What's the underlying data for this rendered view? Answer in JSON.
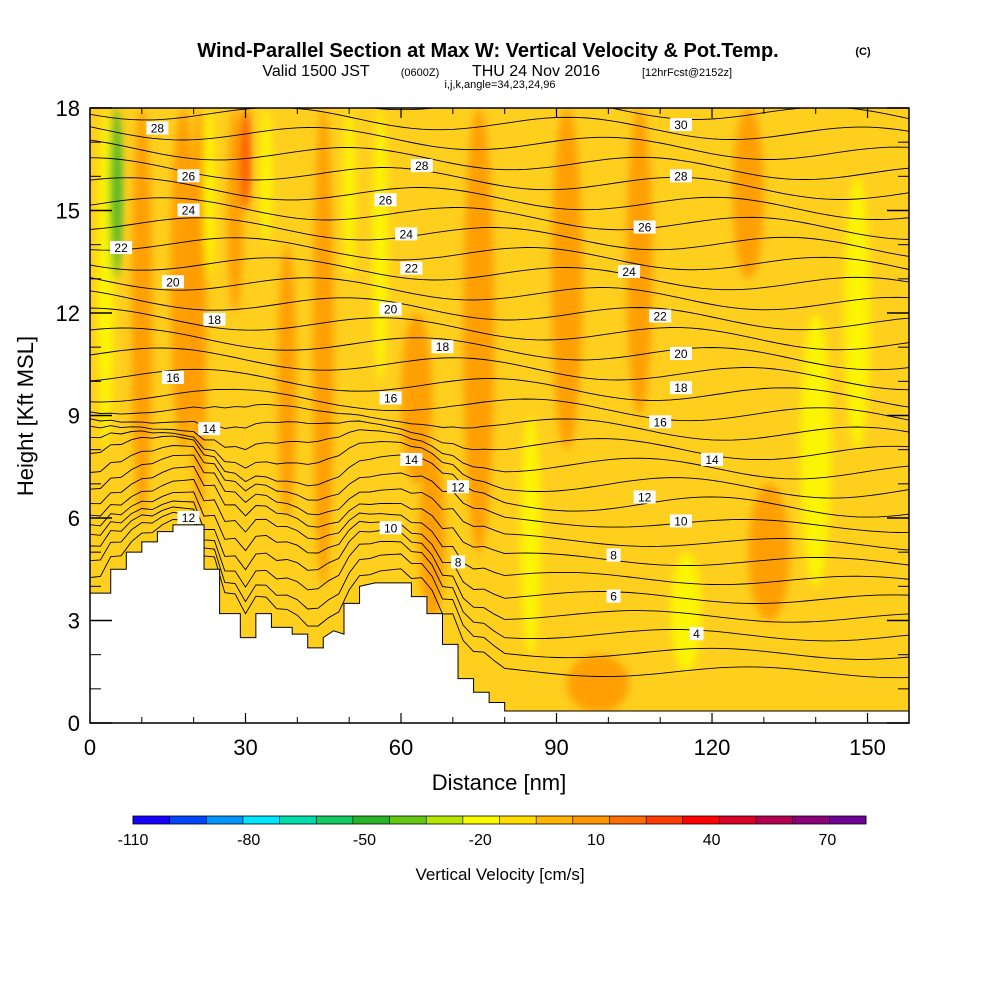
{
  "chart_data": {
    "type": "heatmap",
    "title": "Wind-Parallel Section at Max W: Vertical Velocity & Pot.Temp.",
    "title_mark": "(C)",
    "subtitle_valid": "Valid 1500 JST",
    "subtitle_utc": "(0600Z)",
    "subtitle_date": "THU 24 Nov 2016",
    "subtitle_fcst": "[12hrFcst@2152z]",
    "subtitle_indices": "i,j,k,angle=34,23,24,96",
    "xlabel": "Distance [nm]",
    "ylabel": "Height [Kft MSL]",
    "xlim": [
      0,
      158
    ],
    "ylim": [
      0,
      18
    ],
    "x_ticks": [
      0,
      30,
      60,
      90,
      120,
      150
    ],
    "y_ticks": [
      0,
      3,
      6,
      9,
      12,
      15,
      18
    ],
    "colorbar": {
      "label": "Vertical Velocity [cm/s]",
      "min": -110,
      "max": 80,
      "step": 10,
      "tick_values": [
        -110,
        -80,
        -50,
        -20,
        10,
        40,
        70
      ],
      "colors": [
        "#1400ff",
        "#0046ff",
        "#0096ff",
        "#00e6ff",
        "#00dcaa",
        "#14c864",
        "#28b428",
        "#64c814",
        "#b4e600",
        "#fafa00",
        "#ffdc00",
        "#ffb400",
        "#ff9600",
        "#ff6e00",
        "#ff3c00",
        "#ff0000",
        "#dc0028",
        "#b40050",
        "#8c0078",
        "#6e0096"
      ]
    },
    "field_description_values": {
      "background_w_cm_s": 5,
      "updraft_bands_w_cm_s": 15,
      "downdraft_bands_w_cm_s": -15
    },
    "terrain": [
      [
        0,
        3.8
      ],
      [
        4,
        3.8
      ],
      [
        4,
        4.5
      ],
      [
        7,
        4.5
      ],
      [
        7,
        5.0
      ],
      [
        10,
        5.0
      ],
      [
        10,
        5.3
      ],
      [
        13,
        5.3
      ],
      [
        13,
        5.6
      ],
      [
        16,
        5.6
      ],
      [
        16,
        5.8
      ],
      [
        22,
        5.8
      ],
      [
        22,
        4.5
      ],
      [
        25,
        4.5
      ],
      [
        25,
        3.2
      ],
      [
        29,
        3.2
      ],
      [
        29,
        2.5
      ],
      [
        32,
        2.5
      ],
      [
        32,
        3.2
      ],
      [
        35,
        3.2
      ],
      [
        35,
        2.8
      ],
      [
        39,
        2.8
      ],
      [
        39,
        2.6
      ],
      [
        42,
        2.6
      ],
      [
        42,
        2.2
      ],
      [
        45,
        2.2
      ],
      [
        45,
        2.5
      ],
      [
        47,
        2.7
      ],
      [
        49,
        2.6
      ],
      [
        49,
        3.5
      ],
      [
        52,
        3.5
      ],
      [
        52,
        4.0
      ],
      [
        55,
        4.1
      ],
      [
        62,
        4.1
      ],
      [
        62,
        3.7
      ],
      [
        65,
        3.7
      ],
      [
        65,
        3.2
      ],
      [
        68,
        3.2
      ],
      [
        68,
        2.3
      ],
      [
        71,
        2.3
      ],
      [
        71,
        1.3
      ],
      [
        74,
        1.3
      ],
      [
        74,
        0.9
      ],
      [
        77,
        0.9
      ],
      [
        77,
        0.6
      ],
      [
        80,
        0.6
      ],
      [
        80,
        0.35
      ],
      [
        86,
        0.35
      ],
      [
        86,
        0.35
      ],
      [
        158,
        0.35
      ]
    ],
    "theta_labels": [
      {
        "text": "28",
        "x": 13,
        "y": 17.4
      },
      {
        "text": "26",
        "x": 19,
        "y": 16.0
      },
      {
        "text": "24",
        "x": 19,
        "y": 15.0
      },
      {
        "text": "22",
        "x": 6,
        "y": 13.9
      },
      {
        "text": "20",
        "x": 16,
        "y": 12.9
      },
      {
        "text": "18",
        "x": 24,
        "y": 11.8
      },
      {
        "text": "16",
        "x": 16,
        "y": 10.1
      },
      {
        "text": "14",
        "x": 23,
        "y": 8.6
      },
      {
        "text": "12",
        "x": 19,
        "y": 6.0
      },
      {
        "text": "28",
        "x": 64,
        "y": 16.3
      },
      {
        "text": "26",
        "x": 57,
        "y": 15.3
      },
      {
        "text": "24",
        "x": 61,
        "y": 14.3
      },
      {
        "text": "22",
        "x": 62,
        "y": 13.3
      },
      {
        "text": "20",
        "x": 58,
        "y": 12.1
      },
      {
        "text": "18",
        "x": 68,
        "y": 11.0
      },
      {
        "text": "16",
        "x": 58,
        "y": 9.5
      },
      {
        "text": "14",
        "x": 62,
        "y": 7.7
      },
      {
        "text": "12",
        "x": 71,
        "y": 6.9
      },
      {
        "text": "10",
        "x": 58,
        "y": 5.7
      },
      {
        "text": "8",
        "x": 71,
        "y": 4.7
      },
      {
        "text": "30",
        "x": 114,
        "y": 17.5
      },
      {
        "text": "28",
        "x": 114,
        "y": 16.0
      },
      {
        "text": "26",
        "x": 107,
        "y": 14.5
      },
      {
        "text": "24",
        "x": 104,
        "y": 13.2
      },
      {
        "text": "22",
        "x": 110,
        "y": 11.9
      },
      {
        "text": "20",
        "x": 114,
        "y": 10.8
      },
      {
        "text": "18",
        "x": 114,
        "y": 9.8
      },
      {
        "text": "16",
        "x": 110,
        "y": 8.8
      },
      {
        "text": "14",
        "x": 120,
        "y": 7.7
      },
      {
        "text": "12",
        "x": 107,
        "y": 6.6
      },
      {
        "text": "10",
        "x": 114,
        "y": 5.9
      },
      {
        "text": "8",
        "x": 101,
        "y": 4.9
      },
      {
        "text": "6",
        "x": 101,
        "y": 3.7
      },
      {
        "text": "4",
        "x": 117,
        "y": 2.6
      }
    ]
  }
}
